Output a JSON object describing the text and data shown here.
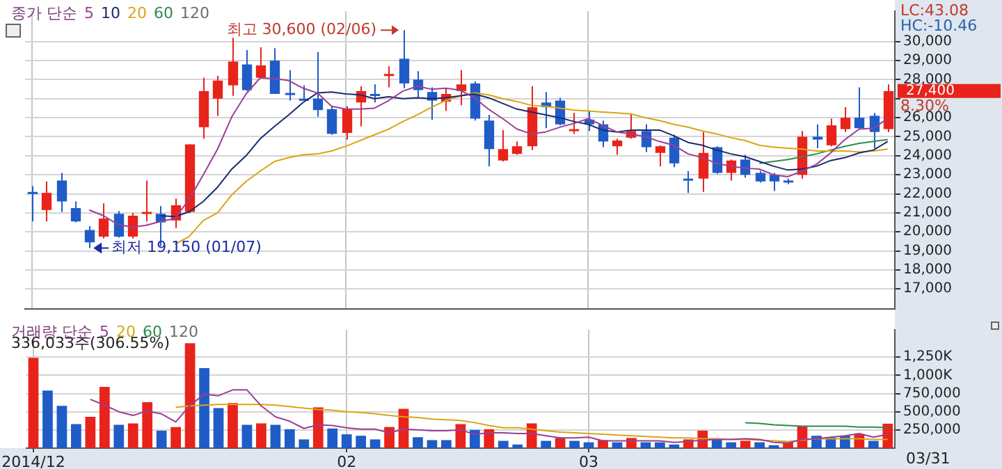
{
  "chart_data": [
    {
      "type": "candlestick",
      "legend_title": "종가 단순",
      "legend": "top left",
      "grid": true,
      "marker": "none",
      "tick_labels": "y",
      "categories": [
        "2014/12",
        null,
        null,
        null,
        null,
        null,
        null,
        null,
        null,
        null,
        null,
        null,
        null,
        null,
        null,
        null,
        null,
        null,
        null,
        null,
        null,
        null,
        "02",
        null,
        null,
        null,
        null,
        null,
        null,
        null,
        null,
        null,
        null,
        null,
        null,
        null,
        null,
        null,
        null,
        "03",
        null,
        null,
        null,
        null,
        null,
        null,
        null,
        null,
        null,
        null,
        null,
        null,
        null,
        null,
        null,
        null,
        null,
        null,
        null,
        null,
        null
      ],
      "ohlc": [
        [
          22100,
          22400,
          20550,
          22050
        ],
        [
          21150,
          22650,
          20550,
          22050
        ],
        [
          22700,
          23100,
          21050,
          21600
        ],
        [
          21250,
          21600,
          20500,
          20550
        ],
        [
          20100,
          20300,
          19150,
          19450
        ],
        [
          19750,
          21500,
          19650,
          20700
        ],
        [
          20950,
          21100,
          19700,
          19750
        ],
        [
          19750,
          21000,
          19650,
          20850
        ],
        [
          20950,
          22700,
          20550,
          21050
        ],
        [
          20950,
          21350,
          19250,
          20500
        ],
        [
          20600,
          21750,
          20200,
          21400
        ],
        [
          21050,
          24600,
          21000,
          24600
        ],
        [
          25500,
          28100,
          24900,
          27400
        ],
        [
          27000,
          28200,
          26100,
          27950
        ],
        [
          27700,
          30200,
          27150,
          28950
        ],
        [
          28800,
          29550,
          27400,
          27450
        ],
        [
          28100,
          29700,
          28050,
          28750
        ],
        [
          29000,
          29650,
          27250,
          27250
        ],
        [
          27300,
          28500,
          26900,
          27200
        ],
        [
          27000,
          27700,
          26900,
          26950
        ],
        [
          27000,
          29450,
          26050,
          26400
        ],
        [
          26450,
          26600,
          25100,
          25150
        ],
        [
          25200,
          26600,
          24850,
          26450
        ],
        [
          26800,
          27650,
          25550,
          27400
        ],
        [
          27250,
          27750,
          26800,
          27150
        ],
        [
          28200,
          28700,
          27600,
          28300
        ],
        [
          29100,
          30600,
          27550,
          27800
        ],
        [
          28000,
          28450,
          27050,
          27450
        ],
        [
          27350,
          27600,
          25900,
          26900
        ],
        [
          26850,
          27550,
          26350,
          27250
        ],
        [
          27400,
          28500,
          26650,
          27750
        ],
        [
          27800,
          27900,
          25850,
          25950
        ],
        [
          25850,
          26150,
          23450,
          24350
        ],
        [
          23750,
          25350,
          23700,
          24350
        ],
        [
          24100,
          24750,
          24050,
          24500
        ],
        [
          24500,
          27650,
          24300,
          26550
        ],
        [
          26800,
          27350,
          25450,
          26550
        ],
        [
          26900,
          27050,
          25600,
          25650
        ],
        [
          25300,
          26250,
          25150,
          25400
        ],
        [
          25900,
          26350,
          25300,
          25650
        ],
        [
          25650,
          25850,
          24450,
          24750
        ],
        [
          24500,
          24900,
          24050,
          24800
        ],
        [
          24950,
          26200,
          24900,
          25300
        ],
        [
          25300,
          25650,
          24200,
          24450
        ],
        [
          24150,
          24550,
          23450,
          24500
        ],
        [
          24950,
          25100,
          23400,
          23600
        ],
        [
          22800,
          23200,
          22050,
          22750
        ],
        [
          22800,
          25250,
          22100,
          24150
        ],
        [
          24450,
          24500,
          23050,
          23100
        ],
        [
          23100,
          23800,
          22700,
          23750
        ],
        [
          23800,
          24050,
          22850,
          23000
        ],
        [
          23100,
          23200,
          22600,
          22650
        ],
        [
          23000,
          23100,
          22150,
          22650
        ],
        [
          22700,
          22800,
          22500,
          22650
        ],
        [
          23000,
          25300,
          22800,
          25000
        ],
        [
          25000,
          25650,
          24400,
          24850
        ],
        [
          24550,
          25950,
          24500,
          25600
        ],
        [
          25400,
          26550,
          25250,
          26000
        ],
        [
          26000,
          27600,
          25400,
          25450
        ],
        [
          26100,
          26250,
          24400,
          25250
        ],
        [
          25400,
          27750,
          25250,
          27400
        ]
      ],
      "colors": [
        "#1f5cc8",
        "#e8231b",
        "#1f5cc8",
        "#1f5cc8",
        "#1f5cc8",
        "#e8231b",
        "#1f5cc8",
        "#e8231b",
        "#e8231b",
        "#1f5cc8",
        "#e8231b",
        "#e8231b",
        "#e8231b",
        "#e8231b",
        "#e8231b",
        "#1f5cc8",
        "#e8231b",
        "#1f5cc8",
        "#1f5cc8",
        "#1f5cc8",
        "#1f5cc8",
        "#1f5cc8",
        "#e8231b",
        "#e8231b",
        "#1f5cc8",
        "#e8231b",
        "#1f5cc8",
        "#1f5cc8",
        "#1f5cc8",
        "#e8231b",
        "#e8231b",
        "#1f5cc8",
        "#1f5cc8",
        "#e8231b",
        "#e8231b",
        "#e8231b",
        "#1f5cc8",
        "#1f5cc8",
        "#e8231b",
        "#1f5cc8",
        "#1f5cc8",
        "#e8231b",
        "#e8231b",
        "#1f5cc8",
        "#e8231b",
        "#1f5cc8",
        "#1f5cc8",
        "#e8231b",
        "#1f5cc8",
        "#e8231b",
        "#1f5cc8",
        "#1f5cc8",
        "#1f5cc8",
        "#1f5cc8",
        "#e8231b",
        "#1f5cc8",
        "#e8231b",
        "#e8231b",
        "#1f5cc8",
        "#1f5cc8",
        "#e8231b"
      ],
      "series": [
        {
          "name": "5",
          "type": "line",
          "color": "#9a3f95",
          "values": [
            null,
            null,
            null,
            null,
            21150,
            20850,
            20400,
            20250,
            20350,
            20550,
            20700,
            21700,
            23000,
            24350,
            26050,
            27250,
            28100,
            28050,
            27950,
            27550,
            27300,
            26600,
            26450,
            26450,
            26500,
            26900,
            27400,
            27650,
            27500,
            27550,
            27450,
            27050,
            26450,
            25950,
            25400,
            25150,
            25250,
            25500,
            25700,
            25950,
            25600,
            25250,
            25150,
            25000,
            24750,
            24550,
            24100,
            23900,
            23600,
            23450,
            23350,
            23300,
            23000,
            22900,
            23200,
            23550,
            24150,
            24850,
            25400,
            25450,
            25950
          ]
        },
        {
          "name": "10",
          "type": "line",
          "color": "#1c2a6b",
          "values": [
            null,
            null,
            null,
            null,
            null,
            null,
            null,
            null,
            null,
            20850,
            20800,
            21050,
            21600,
            22350,
            23300,
            24000,
            24900,
            25550,
            26150,
            26800,
            27300,
            27350,
            27250,
            27200,
            27000,
            27100,
            27000,
            27050,
            27000,
            27050,
            27150,
            27250,
            27050,
            26750,
            26450,
            26300,
            26150,
            26000,
            25800,
            25650,
            25350,
            25250,
            25350,
            25350,
            25350,
            25050,
            24700,
            24550,
            24300,
            24100,
            23950,
            23700,
            23450,
            23250,
            23300,
            23450,
            23750,
            23900,
            24150,
            24300,
            24750
          ]
        },
        {
          "name": "20",
          "type": "line",
          "color": "#d9a514",
          "values": [
            null,
            null,
            null,
            null,
            null,
            null,
            null,
            null,
            null,
            null,
            19350,
            19750,
            20600,
            21000,
            21950,
            22650,
            23200,
            23700,
            23900,
            24050,
            24100,
            24250,
            24500,
            24800,
            25100,
            25400,
            25800,
            26150,
            26550,
            26900,
            27150,
            27300,
            27200,
            27000,
            26850,
            26650,
            26600,
            26500,
            26400,
            26350,
            26300,
            26250,
            26200,
            26000,
            25850,
            25650,
            25500,
            25300,
            25150,
            24950,
            24800,
            24550,
            24450,
            24400,
            24350,
            24250,
            24250,
            24250,
            24200,
            24250,
            24350
          ]
        },
        {
          "name": "60",
          "type": "line",
          "color": "#2f8a4e",
          "values": [
            null,
            null,
            null,
            null,
            null,
            null,
            null,
            null,
            null,
            null,
            null,
            null,
            null,
            null,
            null,
            null,
            null,
            null,
            null,
            null,
            null,
            null,
            null,
            null,
            null,
            null,
            null,
            null,
            null,
            null,
            null,
            null,
            null,
            null,
            null,
            null,
            null,
            null,
            null,
            null,
            null,
            null,
            null,
            null,
            null,
            null,
            null,
            null,
            null,
            null,
            null,
            23600,
            23700,
            23800,
            23950,
            24100,
            24300,
            24500,
            24650,
            24750,
            24850
          ]
        },
        {
          "name": "120",
          "type": "line",
          "color": "#6e6e6e",
          "values": [
            null,
            null,
            null,
            null,
            null,
            null,
            null,
            null,
            null,
            null,
            null,
            null,
            null,
            null,
            null,
            null,
            null,
            null,
            null,
            null,
            null,
            null,
            null,
            null,
            null,
            null,
            null,
            null,
            null,
            null,
            null,
            null,
            null,
            null,
            null,
            null,
            null,
            null,
            null,
            null,
            null,
            null,
            null,
            null,
            null,
            null,
            null,
            null,
            null,
            null,
            null,
            null,
            null,
            null,
            null,
            null,
            null,
            null,
            null,
            null,
            null
          ]
        }
      ],
      "ylim": [
        15950,
        31600
      ],
      "yticks": [
        {
          "value": 17000,
          "label": "17,000"
        },
        {
          "value": 18000,
          "label": "18,000"
        },
        {
          "value": 19000,
          "label": "19,000"
        },
        {
          "value": 20000,
          "label": "20,000"
        },
        {
          "value": 21000,
          "label": "21,000"
        },
        {
          "value": 22000,
          "label": "22,000"
        },
        {
          "value": 23000,
          "label": "23,000"
        },
        {
          "value": 24000,
          "label": "24,000"
        },
        {
          "value": 25000,
          "label": "25,000"
        },
        {
          "value": 26000,
          "label": "26,000"
        },
        {
          "value": 27000,
          "label": null
        },
        {
          "value": 28000,
          "label": "28,000"
        },
        {
          "value": 29000,
          "label": "29,000"
        },
        {
          "value": 30000,
          "label": "30,000"
        }
      ],
      "annotations": [
        "LC:43.08",
        "HC:-10.46",
        "최고 30,600 (02/06)",
        "최저 19,150 (01/07)",
        "27,400",
        "8.30%"
      ]
    },
    {
      "type": "bar",
      "legend_title": "거래량 단순",
      "legend": "top left",
      "grid": true,
      "marker": "none",
      "categories": [
        "2014/12",
        null,
        null,
        null,
        null,
        null,
        null,
        null,
        null,
        null,
        null,
        null,
        null,
        null,
        null,
        null,
        null,
        null,
        null,
        null,
        null,
        null,
        "02",
        null,
        null,
        null,
        null,
        null,
        null,
        null,
        null,
        null,
        null,
        null,
        null,
        null,
        null,
        null,
        null,
        "03",
        null,
        null,
        null,
        null,
        null,
        null,
        null,
        null,
        null,
        null,
        null,
        null,
        null,
        null,
        null,
        null,
        null,
        null,
        null,
        null,
        null
      ],
      "series": [
        {
          "type": "bar",
          "values": [
            1240000,
            790000,
            580000,
            330000,
            430000,
            840000,
            320000,
            340000,
            630000,
            240000,
            290000,
            1440000,
            1100000,
            550000,
            620000,
            320000,
            340000,
            320000,
            260000,
            120000,
            560000,
            270000,
            190000,
            170000,
            120000,
            290000,
            540000,
            150000,
            110000,
            110000,
            330000,
            250000,
            260000,
            100000,
            50000,
            340000,
            100000,
            140000,
            100000,
            80000,
            110000,
            80000,
            140000,
            80000,
            80000,
            50000,
            120000,
            240000,
            120000,
            80000,
            100000,
            80000,
            40000,
            80000,
            300000,
            170000,
            150000,
            170000,
            190000,
            100000,
            336033
          ],
          "colors": [
            "#e8231b",
            "#1f5cc8",
            "#1f5cc8",
            "#1f5cc8",
            "#e8231b",
            "#e8231b",
            "#1f5cc8",
            "#e8231b",
            "#e8231b",
            "#1f5cc8",
            "#e8231b",
            "#e8231b",
            "#1f5cc8",
            "#1f5cc8",
            "#e8231b",
            "#1f5cc8",
            "#e8231b",
            "#1f5cc8",
            "#1f5cc8",
            "#1f5cc8",
            "#e8231b",
            "#1f5cc8",
            "#1f5cc8",
            "#1f5cc8",
            "#1f5cc8",
            "#e8231b",
            "#e8231b",
            "#1f5cc8",
            "#1f5cc8",
            "#1f5cc8",
            "#e8231b",
            "#1f5cc8",
            "#e8231b",
            "#1f5cc8",
            "#1f5cc8",
            "#e8231b",
            "#1f5cc8",
            "#e8231b",
            "#1f5cc8",
            "#1f5cc8",
            "#e8231b",
            "#1f5cc8",
            "#e8231b",
            "#1f5cc8",
            "#1f5cc8",
            "#1f5cc8",
            "#e8231b",
            "#e8231b",
            "#1f5cc8",
            "#1f5cc8",
            "#e8231b",
            "#1f5cc8",
            "#1f5cc8",
            "#e8231b",
            "#e8231b",
            "#1f5cc8",
            "#1f5cc8",
            "#1f5cc8",
            "#e8231b",
            "#1f5cc8",
            "#e8231b"
          ]
        },
        {
          "name": "5",
          "type": "line",
          "color": "#9a3f95",
          "values": [
            null,
            null,
            null,
            null,
            670000,
            590000,
            500000,
            450000,
            510000,
            470000,
            360000,
            590000,
            740000,
            720000,
            800000,
            800000,
            580000,
            430000,
            370000,
            270000,
            320000,
            310000,
            280000,
            260000,
            260000,
            210000,
            260000,
            250000,
            240000,
            240000,
            250000,
            190000,
            210000,
            210000,
            200000,
            200000,
            170000,
            140000,
            140000,
            150000,
            100000,
            100000,
            100000,
            100000,
            100000,
            80000,
            90000,
            110000,
            120000,
            120000,
            130000,
            120000,
            80000,
            70000,
            120000,
            130000,
            150000,
            170000,
            200000,
            150000,
            190000
          ]
        },
        {
          "name": "20",
          "type": "line",
          "color": "#d9a514",
          "values": [
            null,
            null,
            null,
            null,
            null,
            null,
            null,
            null,
            null,
            null,
            560000,
            580000,
            590000,
            600000,
            600000,
            600000,
            600000,
            590000,
            570000,
            550000,
            530000,
            520000,
            500000,
            490000,
            470000,
            450000,
            430000,
            420000,
            400000,
            390000,
            380000,
            350000,
            310000,
            280000,
            280000,
            260000,
            240000,
            220000,
            210000,
            200000,
            190000,
            180000,
            170000,
            160000,
            150000,
            140000,
            140000,
            130000,
            130000,
            120000,
            120000,
            110000,
            100000,
            90000,
            110000,
            130000,
            130000,
            130000,
            130000,
            120000,
            120000
          ]
        },
        {
          "name": "60",
          "type": "line",
          "color": "#2f8a4e",
          "values": [
            null,
            null,
            null,
            null,
            null,
            null,
            null,
            null,
            null,
            null,
            null,
            null,
            null,
            null,
            null,
            null,
            null,
            null,
            null,
            null,
            null,
            null,
            null,
            null,
            null,
            null,
            null,
            null,
            null,
            null,
            null,
            null,
            null,
            null,
            null,
            null,
            null,
            null,
            null,
            null,
            null,
            null,
            null,
            null,
            null,
            null,
            null,
            null,
            null,
            null,
            350000,
            340000,
            320000,
            310000,
            300000,
            300000,
            300000,
            300000,
            290000,
            290000,
            280000
          ]
        },
        {
          "name": "120",
          "type": "line",
          "color": "#6e6e6e",
          "values": [
            null,
            null,
            null,
            null,
            null,
            null,
            null,
            null,
            null,
            null,
            null,
            null,
            null,
            null,
            null,
            null,
            null,
            null,
            null,
            null,
            null,
            null,
            null,
            null,
            null,
            null,
            null,
            null,
            null,
            null,
            null,
            null,
            null,
            null,
            null,
            null,
            null,
            null,
            null,
            null,
            null,
            null,
            null,
            null,
            null,
            null,
            null,
            null,
            null,
            null,
            null,
            null,
            null,
            null,
            null,
            null,
            null,
            null,
            null,
            null,
            null
          ]
        }
      ],
      "ylim": [
        0,
        1625000
      ],
      "yticks": [
        {
          "value": 250000,
          "label": "250,000"
        },
        {
          "value": 500000,
          "label": "500,000"
        },
        {
          "value": 750000,
          "label": "750,000"
        },
        {
          "value": 1000000,
          "label": "1,000K"
        },
        {
          "value": 1250000,
          "label": "1,250K"
        }
      ],
      "annotations": [
        "336,033주(306.55%)",
        "03/31"
      ]
    }
  ]
}
